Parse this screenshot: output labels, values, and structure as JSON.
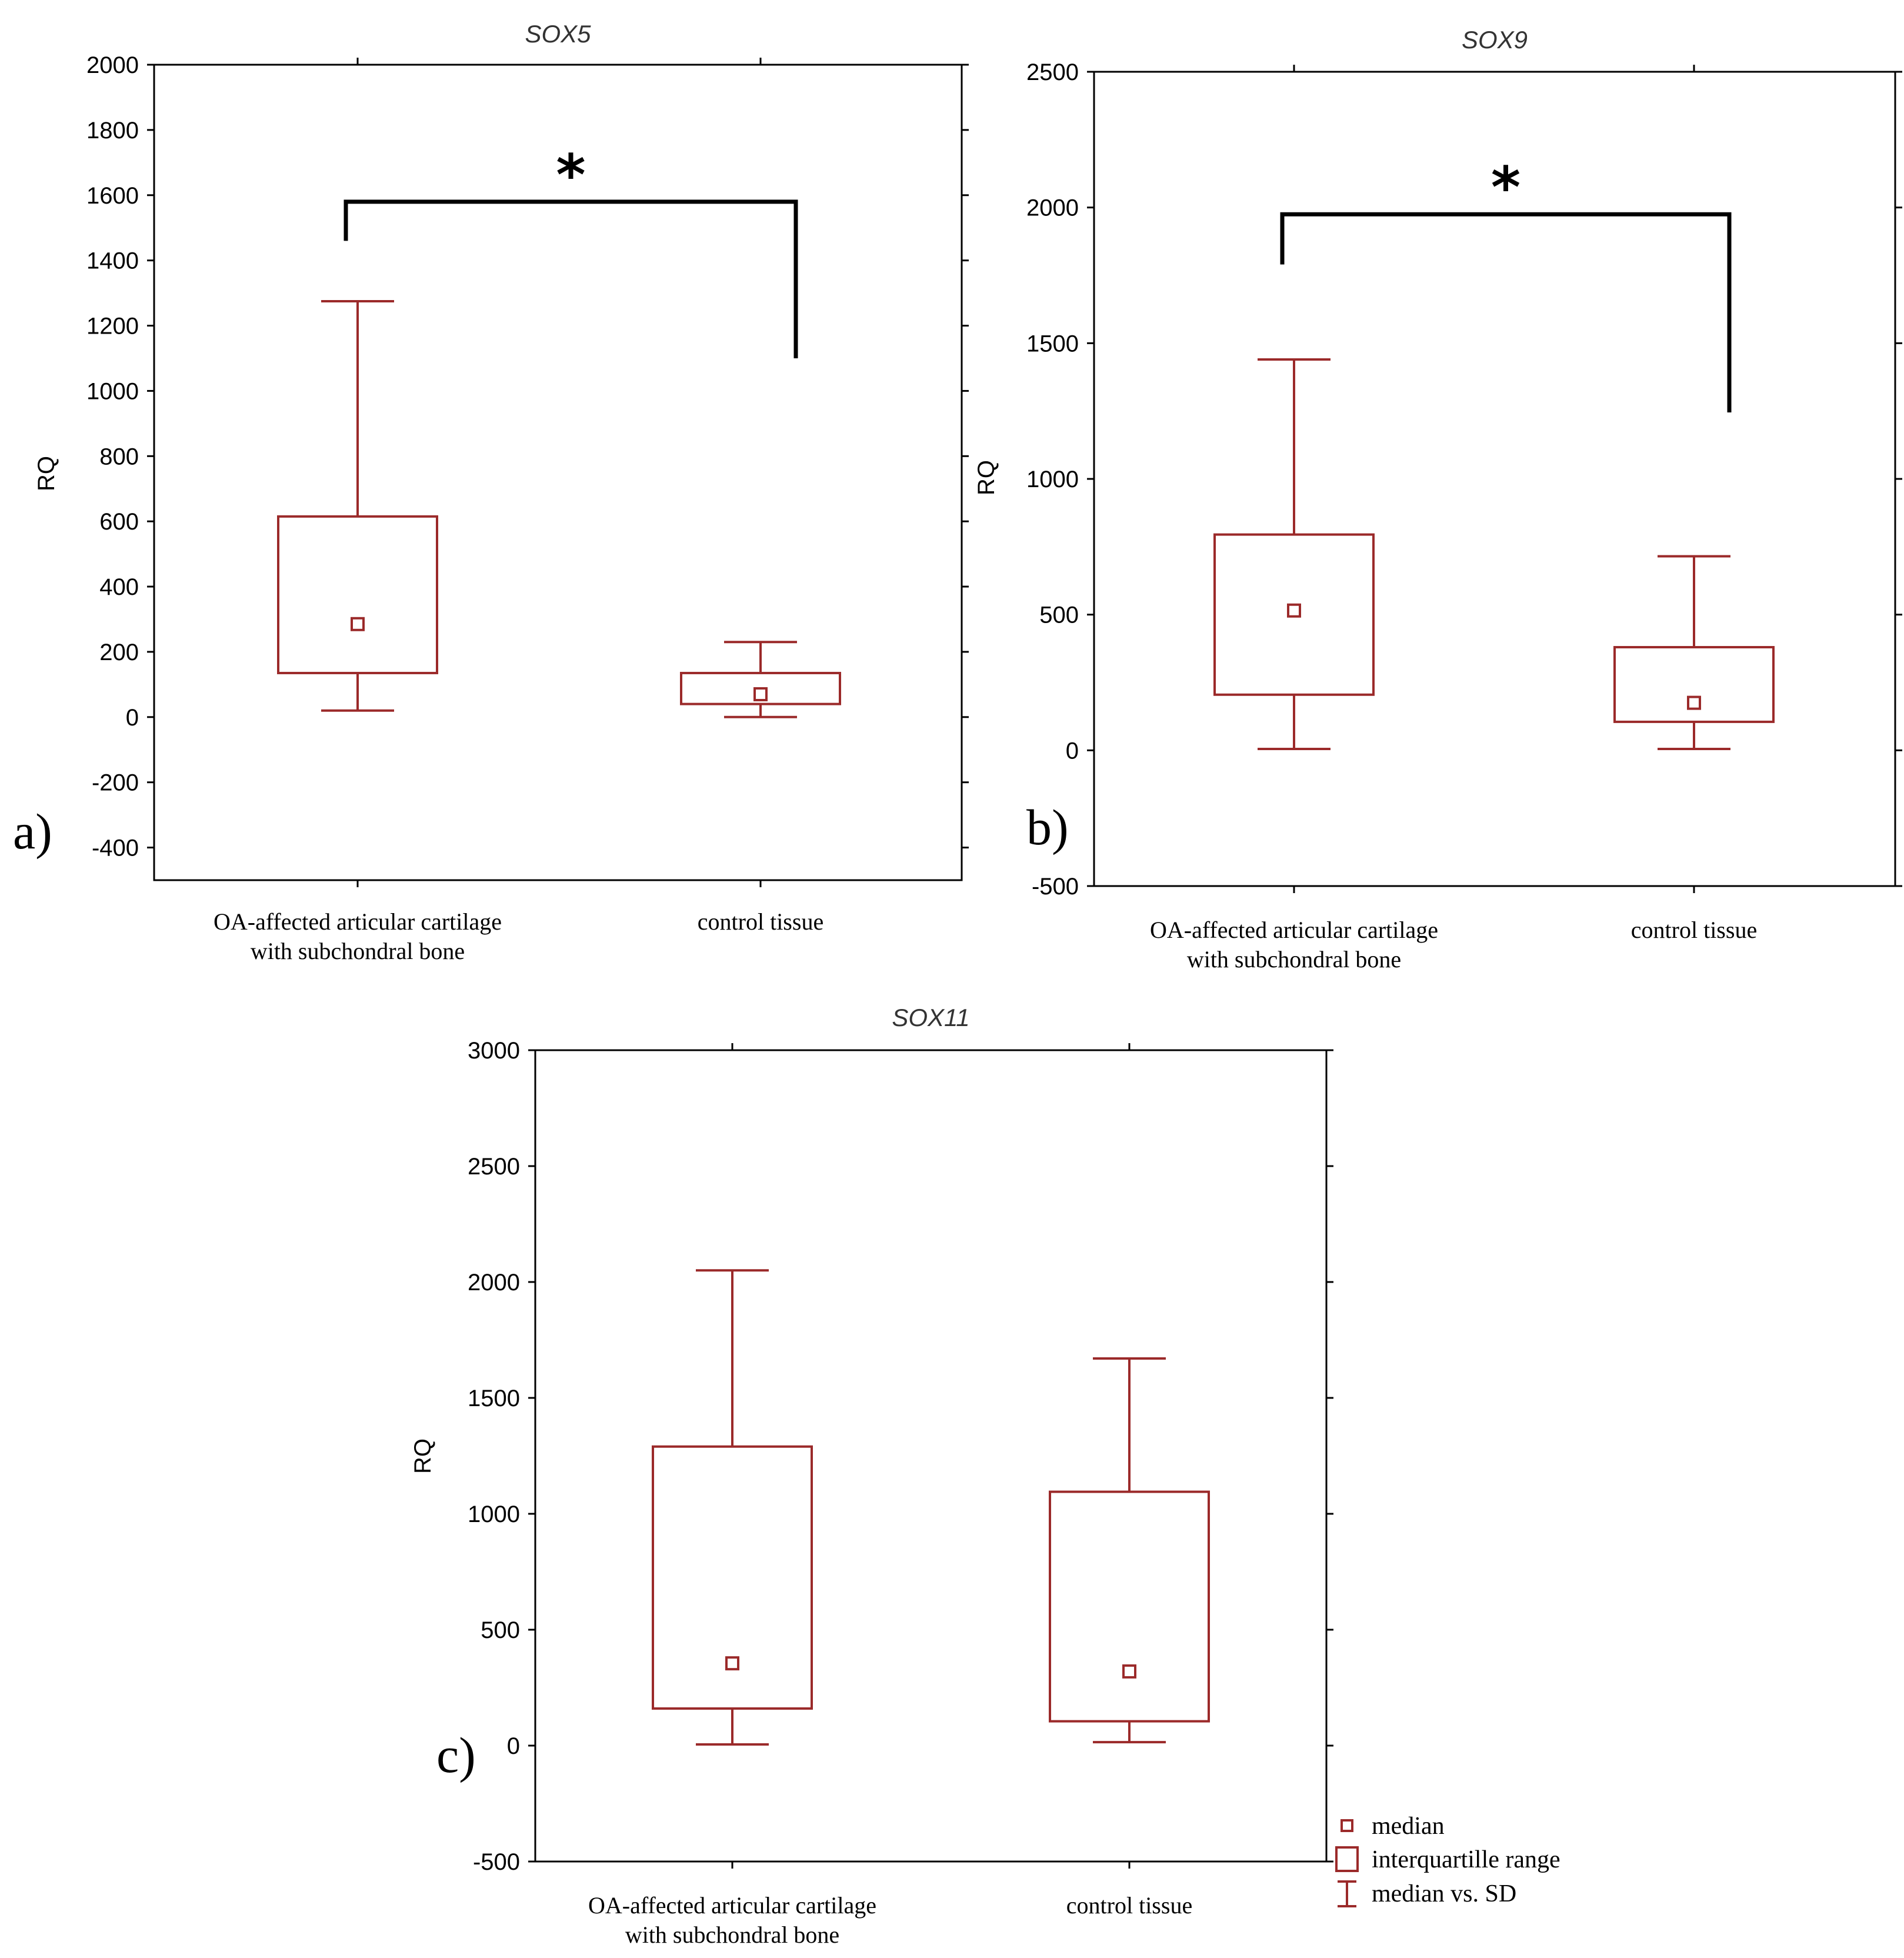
{
  "colors": {
    "box": "#9b2a2a",
    "axis": "#000000",
    "bracket": "#000000"
  },
  "chart_data": [
    {
      "type": "box",
      "panel_label": "a)",
      "title": "SOX5",
      "ylabel": "RQ",
      "ylim": [
        -500,
        2000
      ],
      "yticks": [
        2000,
        1800,
        1600,
        1400,
        1200,
        1000,
        800,
        600,
        400,
        200,
        0,
        -200,
        -400
      ],
      "categories": [
        "OA-affected articular cartilage\nwith subchondral bone",
        "control tissue"
      ],
      "groups": [
        {
          "whisker_low": 20,
          "q1": 135,
          "median": 285,
          "q3": 615,
          "whisker_high": 1275
        },
        {
          "whisker_low": 0,
          "q1": 40,
          "median": 70,
          "q3": 135,
          "whisker_high": 230
        }
      ],
      "significance": {
        "marker": "*",
        "bracket_y": 1580,
        "left_end": 1460,
        "right_end": 1100
      }
    },
    {
      "type": "box",
      "panel_label": "b)",
      "title": "SOX9",
      "ylabel": "RQ",
      "ylim": [
        -500,
        2500
      ],
      "yticks": [
        2500,
        2000,
        1500,
        1000,
        500,
        0,
        -500
      ],
      "categories": [
        "OA-affected articular cartilage\nwith subchondral bone",
        "control tissue"
      ],
      "groups": [
        {
          "whisker_low": 5,
          "q1": 205,
          "median": 515,
          "q3": 795,
          "whisker_high": 1440
        },
        {
          "whisker_low": 5,
          "q1": 105,
          "median": 175,
          "q3": 380,
          "whisker_high": 715
        }
      ],
      "significance": {
        "marker": "*",
        "bracket_y": 1975,
        "left_end": 1790,
        "right_end": 1245
      }
    },
    {
      "type": "box",
      "panel_label": "c)",
      "title": "SOX11",
      "ylabel": "RQ",
      "ylim": [
        -500,
        3000
      ],
      "yticks": [
        3000,
        2500,
        2000,
        1500,
        1000,
        500,
        0,
        -500
      ],
      "categories": [
        "OA-affected articular cartilage\nwith subchondral bone",
        "control tissue"
      ],
      "groups": [
        {
          "whisker_low": 5,
          "q1": 160,
          "median": 355,
          "q3": 1290,
          "whisker_high": 2050
        },
        {
          "whisker_low": 15,
          "q1": 105,
          "median": 320,
          "q3": 1095,
          "whisker_high": 1670
        }
      ]
    }
  ],
  "legend": [
    {
      "symbol": "median",
      "label": "median"
    },
    {
      "symbol": "iqr",
      "label": "interquartille range"
    },
    {
      "symbol": "whisker",
      "label": "median vs. SD"
    }
  ]
}
